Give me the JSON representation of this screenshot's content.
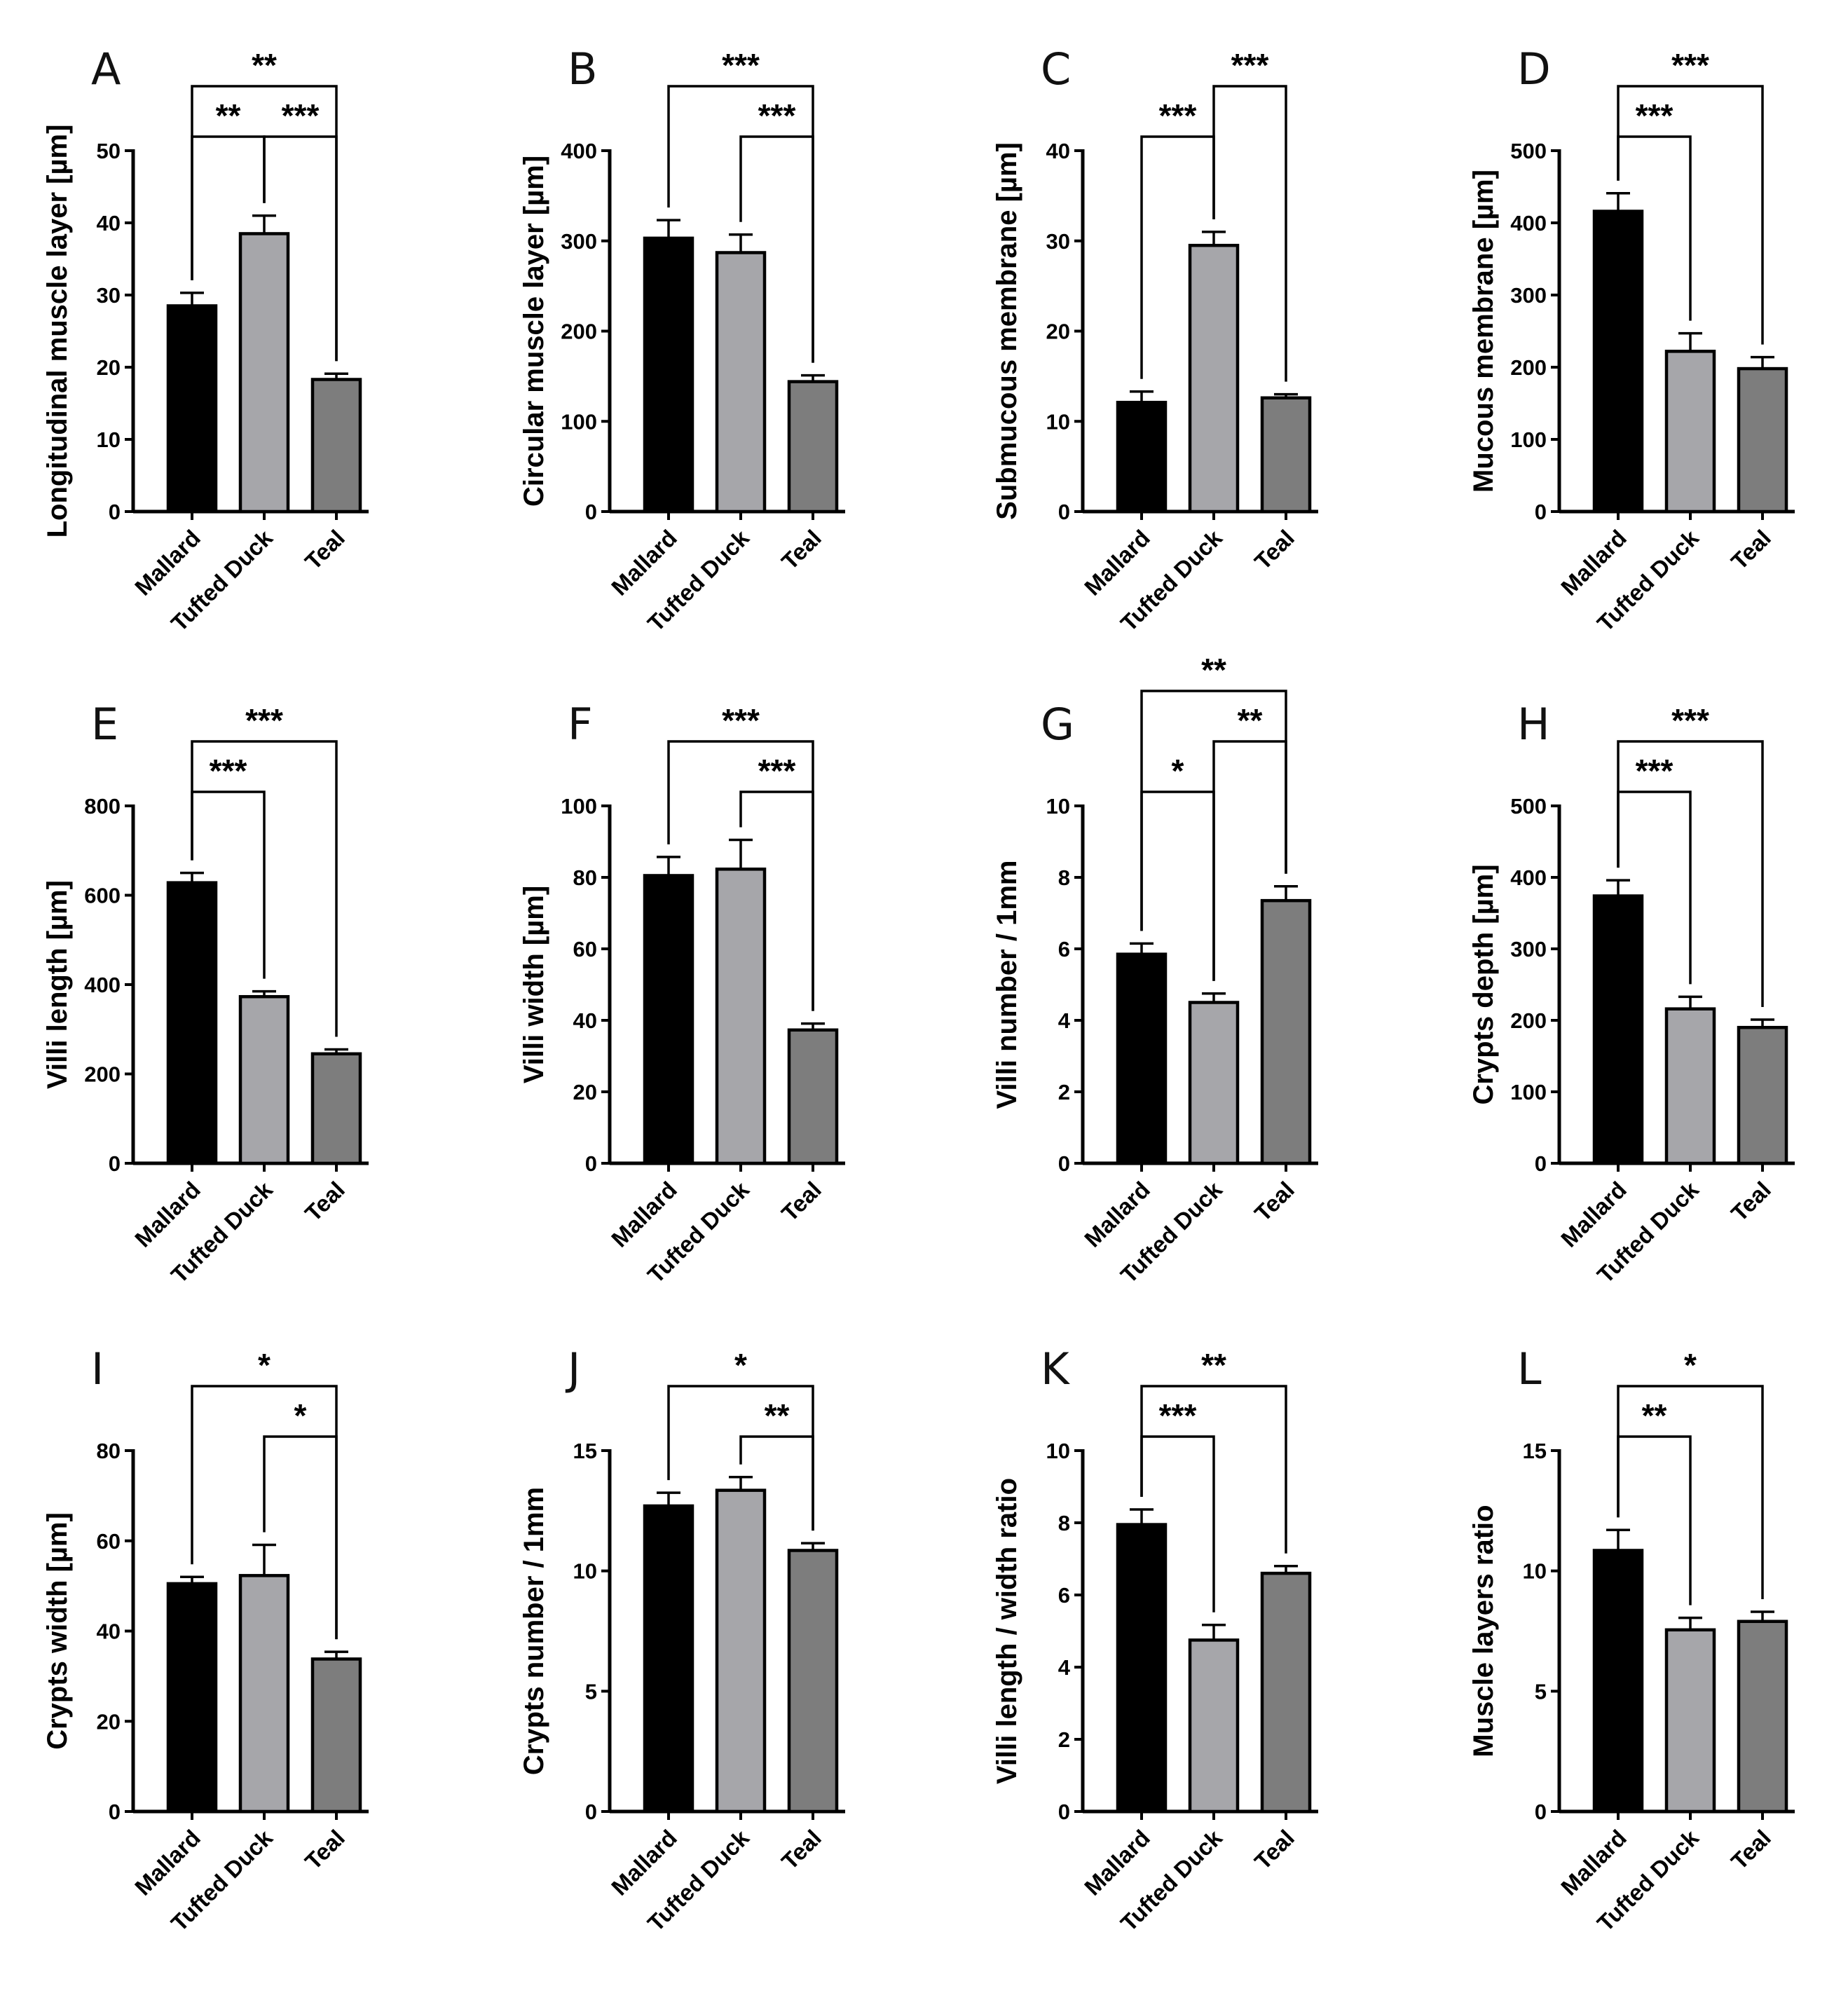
{
  "figure": {
    "categories": [
      "Mallard",
      "Tufted Duck",
      "Teal"
    ],
    "colors": {
      "Mallard": "#000000",
      "Tufted Duck": "#a6a6aa",
      "Teal": "#7d7d7d"
    }
  },
  "chart_data": [
    {
      "letter": "A",
      "type": "bar",
      "ylabel": "Longitudinal muscle layer [µm]",
      "categories": [
        "Mallard",
        "Tufted Duck",
        "Teal"
      ],
      "values": [
        28.5,
        38.5,
        18.3
      ],
      "errors": [
        1.8,
        2.5,
        0.8
      ],
      "ylim": [
        0,
        50
      ],
      "yticks": [
        0,
        10,
        20,
        30,
        40,
        50
      ],
      "significance": [
        {
          "from": 0,
          "to": 1,
          "label": "**",
          "level": 1
        },
        {
          "from": 1,
          "to": 2,
          "label": "***",
          "level": 1
        },
        {
          "from": 0,
          "to": 2,
          "label": "**",
          "level": 2
        }
      ]
    },
    {
      "letter": "B",
      "type": "bar",
      "ylabel": "Circular muscle layer [µm]",
      "categories": [
        "Mallard",
        "Tufted Duck",
        "Teal"
      ],
      "values": [
        303,
        287,
        144
      ],
      "errors": [
        20,
        20,
        7
      ],
      "ylim": [
        0,
        400
      ],
      "yticks": [
        0,
        100,
        200,
        300,
        400
      ],
      "significance": [
        {
          "from": 1,
          "to": 2,
          "label": "***",
          "level": 1
        },
        {
          "from": 0,
          "to": 2,
          "label": "***",
          "level": 2
        }
      ]
    },
    {
      "letter": "C",
      "type": "bar",
      "ylabel": "Submucous membrane [µm]",
      "categories": [
        "Mallard",
        "Tufted Duck",
        "Teal"
      ],
      "values": [
        12.1,
        29.5,
        12.6
      ],
      "errors": [
        1.2,
        1.5,
        0.4
      ],
      "ylim": [
        0,
        40
      ],
      "yticks": [
        0,
        10,
        20,
        30,
        40
      ],
      "significance": [
        {
          "from": 0,
          "to": 1,
          "label": "***",
          "level": 1
        },
        {
          "from": 1,
          "to": 2,
          "label": "***",
          "level": 2
        }
      ]
    },
    {
      "letter": "D",
      "type": "bar",
      "ylabel": "Mucous membrane [µm]",
      "categories": [
        "Mallard",
        "Tufted Duck",
        "Teal"
      ],
      "values": [
        416,
        222,
        198
      ],
      "errors": [
        25,
        25,
        16
      ],
      "ylim": [
        0,
        500
      ],
      "yticks": [
        0,
        100,
        200,
        300,
        400,
        500
      ],
      "significance": [
        {
          "from": 0,
          "to": 1,
          "label": "***",
          "level": 1
        },
        {
          "from": 0,
          "to": 2,
          "label": "***",
          "level": 2
        }
      ]
    },
    {
      "letter": "E",
      "type": "bar",
      "ylabel": "Villi length [µm]",
      "categories": [
        "Mallard",
        "Tufted Duck",
        "Teal"
      ],
      "values": [
        628,
        373,
        245
      ],
      "errors": [
        22,
        12,
        10
      ],
      "ylim": [
        0,
        800
      ],
      "yticks": [
        0,
        200,
        400,
        600,
        800
      ],
      "significance": [
        {
          "from": 0,
          "to": 1,
          "label": "***",
          "level": 1
        },
        {
          "from": 0,
          "to": 2,
          "label": "***",
          "level": 2
        }
      ]
    },
    {
      "letter": "F",
      "type": "bar",
      "ylabel": "Villi width [µm]",
      "categories": [
        "Mallard",
        "Tufted Duck",
        "Teal"
      ],
      "values": [
        80.5,
        82.3,
        37.3
      ],
      "errors": [
        5.2,
        8.2,
        1.8
      ],
      "ylim": [
        0,
        100
      ],
      "yticks": [
        0,
        20,
        40,
        60,
        80,
        100
      ],
      "significance": [
        {
          "from": 1,
          "to": 2,
          "label": "***",
          "level": 1
        },
        {
          "from": 0,
          "to": 2,
          "label": "***",
          "level": 2
        }
      ]
    },
    {
      "letter": "G",
      "type": "bar",
      "ylabel": "Villi number / 1mm",
      "categories": [
        "Mallard",
        "Tufted Duck",
        "Teal"
      ],
      "values": [
        5.85,
        4.5,
        7.35
      ],
      "errors": [
        0.3,
        0.25,
        0.4
      ],
      "ylim": [
        0,
        10
      ],
      "yticks": [
        0,
        2,
        4,
        6,
        8,
        10
      ],
      "significance": [
        {
          "from": 0,
          "to": 1,
          "label": "*",
          "level": 1
        },
        {
          "from": 1,
          "to": 2,
          "label": "**",
          "level": 2
        },
        {
          "from": 0,
          "to": 2,
          "label": "**",
          "level": 3
        }
      ]
    },
    {
      "letter": "H",
      "type": "bar",
      "ylabel": "Crypts depth [µm]",
      "categories": [
        "Mallard",
        "Tufted Duck",
        "Teal"
      ],
      "values": [
        374,
        216,
        190
      ],
      "errors": [
        22,
        17,
        11
      ],
      "ylim": [
        0,
        500
      ],
      "yticks": [
        0,
        100,
        200,
        300,
        400,
        500
      ],
      "significance": [
        {
          "from": 0,
          "to": 1,
          "label": "***",
          "level": 1
        },
        {
          "from": 0,
          "to": 2,
          "label": "***",
          "level": 2
        }
      ]
    },
    {
      "letter": "I",
      "type": "bar",
      "ylabel": "Crypts width [µm]",
      "categories": [
        "Mallard",
        "Tufted Duck",
        "Teal"
      ],
      "values": [
        50.5,
        52.3,
        33.8
      ],
      "errors": [
        1.5,
        6.8,
        1.6
      ],
      "ylim": [
        0,
        80
      ],
      "yticks": [
        0,
        20,
        40,
        60,
        80
      ],
      "significance": [
        {
          "from": 1,
          "to": 2,
          "label": "*",
          "level": 1
        },
        {
          "from": 0,
          "to": 2,
          "label": "*",
          "level": 2
        }
      ]
    },
    {
      "letter": "J",
      "type": "bar",
      "ylabel": "Crypts number / 1mm",
      "categories": [
        "Mallard",
        "Tufted Duck",
        "Teal"
      ],
      "values": [
        12.7,
        13.35,
        10.85
      ],
      "errors": [
        0.55,
        0.55,
        0.3
      ],
      "ylim": [
        0,
        15
      ],
      "yticks": [
        0,
        5,
        10,
        15
      ],
      "significance": [
        {
          "from": 1,
          "to": 2,
          "label": "**",
          "level": 1
        },
        {
          "from": 0,
          "to": 2,
          "label": "*",
          "level": 2
        }
      ]
    },
    {
      "letter": "K",
      "type": "bar",
      "ylabel": "Villi length / width ratio",
      "categories": [
        "Mallard",
        "Tufted Duck",
        "Teal"
      ],
      "values": [
        7.95,
        4.75,
        6.6
      ],
      "errors": [
        0.42,
        0.42,
        0.2
      ],
      "ylim": [
        0,
        10
      ],
      "yticks": [
        0,
        2,
        4,
        6,
        8,
        10
      ],
      "significance": [
        {
          "from": 0,
          "to": 1,
          "label": "***",
          "level": 1
        },
        {
          "from": 0,
          "to": 2,
          "label": "**",
          "level": 2
        }
      ]
    },
    {
      "letter": "L",
      "type": "bar",
      "ylabel": "Muscle layers ratio",
      "categories": [
        "Mallard",
        "Tufted Duck",
        "Teal"
      ],
      "values": [
        10.85,
        7.55,
        7.9
      ],
      "errors": [
        0.85,
        0.5,
        0.4
      ],
      "ylim": [
        0,
        15
      ],
      "yticks": [
        0,
        5,
        10,
        15
      ],
      "significance": [
        {
          "from": 0,
          "to": 1,
          "label": "**",
          "level": 1
        },
        {
          "from": 0,
          "to": 2,
          "label": "*",
          "level": 2
        }
      ]
    }
  ]
}
